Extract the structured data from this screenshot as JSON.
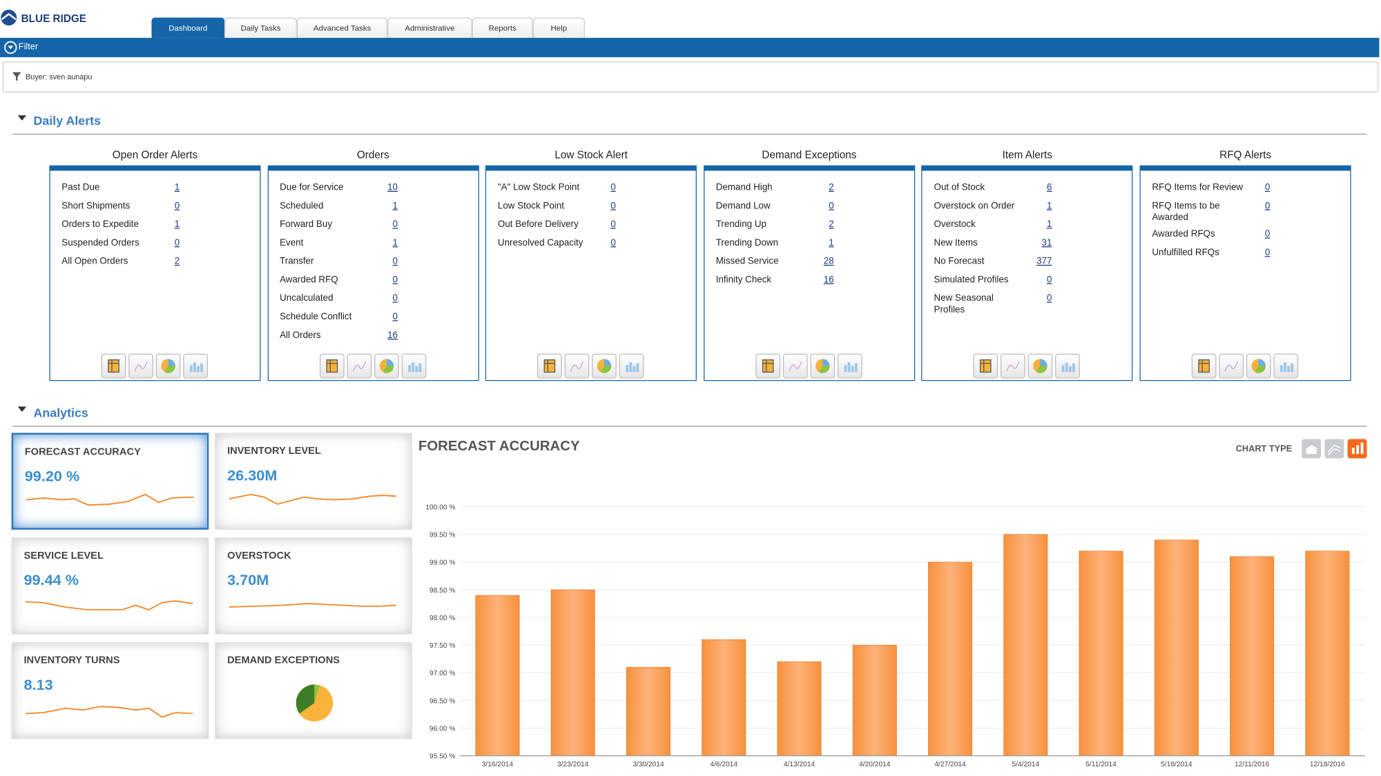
{
  "header": {
    "logo": "BLUE RIDGE",
    "tabs": [
      "Dashboard",
      "Daily Tasks",
      "Advanced Tasks",
      "Administrative",
      "Reports",
      "Help"
    ]
  },
  "filter_bar": {
    "title": "Filter",
    "buyer": "Buyer: sven aunapu"
  },
  "daily_alerts": {
    "title": "Daily Alerts",
    "panels": [
      {
        "title": "Open Order Alerts",
        "items": [
          {
            "label": "Past Due",
            "value": 1
          },
          {
            "label": "Short Shipments",
            "value": 0
          },
          {
            "label": "Orders to Expedite",
            "value": 1
          },
          {
            "label": "Suspended Orders",
            "value": 0
          },
          {
            "label": "All Open Orders",
            "value": 2
          }
        ]
      },
      {
        "title": "Orders",
        "items": [
          {
            "label": "Due for Service",
            "value": 10
          },
          {
            "label": "Scheduled",
            "value": 1
          },
          {
            "label": "Forward Buy",
            "value": 0
          },
          {
            "label": "Event",
            "value": 1
          },
          {
            "label": "Transfer",
            "value": 0
          },
          {
            "label": "Awarded RFQ",
            "value": 0
          },
          {
            "label": "Uncalculated",
            "value": 0
          },
          {
            "label": "Schedule Conflict",
            "value": 0
          },
          {
            "label": "All Orders",
            "value": 16
          }
        ]
      },
      {
        "title": "Low Stock Alert",
        "items": [
          {
            "label": "\"A\" Low Stock Point",
            "value": 0
          },
          {
            "label": "Low Stock Point",
            "value": 0
          },
          {
            "label": "Out Before Delivery",
            "value": 0
          },
          {
            "label": "Unresolved Capacity",
            "value": 0
          }
        ]
      },
      {
        "title": "Demand Exceptions",
        "items": [
          {
            "label": "Demand High",
            "value": 2
          },
          {
            "label": "Demand Low",
            "value": 0
          },
          {
            "label": "Trending Up",
            "value": 2
          },
          {
            "label": "Trending Down",
            "value": 1
          },
          {
            "label": "Missed Service",
            "value": 28
          },
          {
            "label": "Infinity Check",
            "value": 16
          }
        ]
      },
      {
        "title": "Item Alerts",
        "items": [
          {
            "label": "Out of Stock",
            "value": 6
          },
          {
            "label": "Overstock on Order",
            "value": 1
          },
          {
            "label": "Overstock",
            "value": 1
          },
          {
            "label": "New Items",
            "value": 31
          },
          {
            "label": "No Forecast",
            "value": 377
          },
          {
            "label": "Simulated Profiles",
            "value": 0
          },
          {
            "label": "New Seasonal Profiles",
            "value": 0
          }
        ]
      },
      {
        "title": "RFQ Alerts",
        "items": [
          {
            "label": "RFQ Items for Review",
            "value": 0
          },
          {
            "label": "RFQ Items to be Awarded",
            "value": 0
          },
          {
            "label": "Awarded RFQs",
            "value": 0
          },
          {
            "label": "Unfulfilled RFQs",
            "value": 0
          }
        ]
      }
    ]
  },
  "analytics": {
    "title": "Analytics",
    "chart_type_label": "CHART TYPE",
    "tiles": [
      {
        "title": "FORECAST ACCURACY",
        "value": "99.20 %"
      },
      {
        "title": "INVENTORY LEVEL",
        "value": "26.30M"
      },
      {
        "title": "SERVICE LEVEL",
        "value": "99.44 %"
      },
      {
        "title": "OVERSTOCK",
        "value": "3.70M"
      },
      {
        "title": "INVENTORY TURNS",
        "value": "8.13"
      },
      {
        "title": "DEMAND EXCEPTIONS"
      }
    ]
  },
  "chart_data": {
    "type": "bar",
    "title": "FORECAST ACCURACY",
    "color": "#f7913d",
    "grid": true,
    "categories": [
      "3/16/2014",
      "3/23/2014",
      "3/30/2014",
      "4/6/2014",
      "4/13/2014",
      "4/20/2014",
      "4/27/2014",
      "5/4/2014",
      "5/11/2014",
      "5/18/2014",
      "12/11/2016",
      "12/18/2016"
    ],
    "values": [
      98.4,
      98.5,
      97.1,
      97.6,
      97.2,
      97.5,
      99.0,
      99.5,
      99.2,
      99.4,
      99.1,
      99.2
    ],
    "ylim": [
      95.5,
      100
    ],
    "yticks": [
      {
        "value": 95.5,
        "label": "95.50 %"
      },
      {
        "value": 96,
        "label": "96.00 %"
      },
      {
        "value": 96.5,
        "label": "96.50 %"
      },
      {
        "value": 97,
        "label": "97.00 %"
      },
      {
        "value": 97.5,
        "label": "97.50 %"
      },
      {
        "value": 98,
        "label": "98.00 %"
      },
      {
        "value": 98.5,
        "label": "98.50 %"
      },
      {
        "value": 99,
        "label": "99.00 %"
      },
      {
        "value": 99.5,
        "label": "99.50 %"
      },
      {
        "value": 100,
        "label": "100.00 %"
      }
    ]
  }
}
